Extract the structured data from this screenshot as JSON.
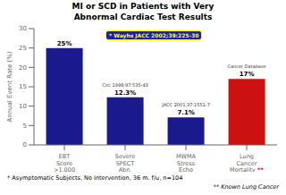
{
  "chart_data": {
    "type": "bar",
    "title": "MI or SCD in Patients with Very\nAbnormal Cardiac Test Results",
    "categories": [
      "EBT\nScore\n>1,000",
      "Severe\nSPECT\nAbn.",
      "MWMA\nStress\nEcho",
      "Lung\nCancer\nMortality"
    ],
    "values": [
      25,
      12.3,
      7.1,
      17
    ],
    "value_labels": [
      "25%",
      "12.3%",
      "7.1%",
      "17%"
    ],
    "colors": [
      "#1a1a8c",
      "#1a1a8c",
      "#1a1a8c",
      "#cc1111"
    ],
    "ylabel": "Annual Event Rate (%)",
    "ylim": [
      0,
      30
    ],
    "yticks": [
      0,
      5,
      10,
      15,
      20,
      25,
      30
    ],
    "data_labels": true,
    "grid": false,
    "annotations": [
      "* Wayhs JACC 2002;39:225-30",
      "Circ 1998;97:535-43",
      "JACC 2001;37:1551-7",
      "Cancer Database",
      "* Asymptomatic Subjects,  No Intervention,  36 m. f/u,   n=104",
      "** Known Lung Cancer",
      "**"
    ]
  }
}
